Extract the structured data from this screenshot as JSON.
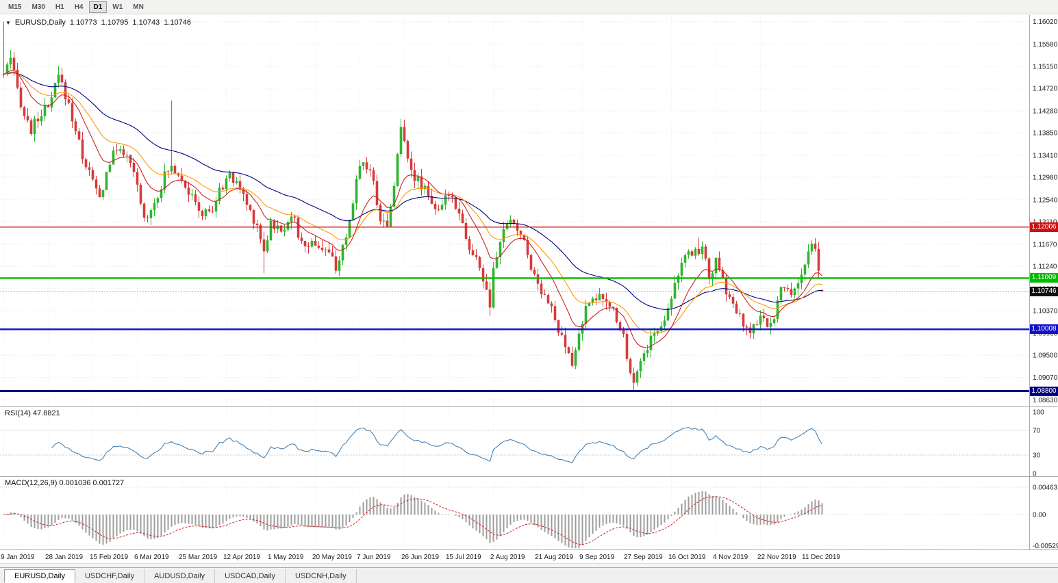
{
  "toolbar": {
    "timeframes": [
      "M15",
      "M30",
      "H1",
      "H4",
      "D1",
      "W1",
      "MN"
    ],
    "active": "D1"
  },
  "symbol_header": {
    "symbol": "EURUSD,Daily",
    "open": "1.10773",
    "high": "1.10795",
    "low": "1.10743",
    "close": "1.10746"
  },
  "price_chart": {
    "up_color": "#2FB52F",
    "down_color": "#D83A3A",
    "y_ticks": [
      "1.16020",
      "1.15580",
      "1.15150",
      "1.14720",
      "1.14280",
      "1.13850",
      "1.13410",
      "1.12980",
      "1.12540",
      "1.12110",
      "1.11670",
      "1.11240",
      "1.10800",
      "1.10370",
      "1.09930",
      "1.09500",
      "1.09070",
      "1.08630"
    ],
    "hlines": [
      {
        "name": "resistance-line",
        "price": 1.12006,
        "label": "1.12006",
        "color": "#CC1111",
        "width": 1.2
      },
      {
        "name": "support-line-green",
        "price": 1.11009,
        "label": "1.11009",
        "color": "#00BB00",
        "width": 2.4
      },
      {
        "name": "support-line-blue",
        "price": 1.10008,
        "label": "1.10008",
        "color": "#1111CC",
        "width": 2.4
      },
      {
        "name": "support-line-navy",
        "price": 1.088,
        "label": "1.08800",
        "color": "#000080",
        "width": 3
      }
    ],
    "current_price": {
      "value": 1.10746,
      "label": "1.10746",
      "flag_color": "#111111"
    },
    "candle_count": 240,
    "moving_averages": [
      {
        "period": 12,
        "color": "#CC2222",
        "name": "ma-fast-red"
      },
      {
        "period": 24,
        "color": "#FF9900",
        "name": "ma-mid-orange"
      },
      {
        "period": 50,
        "color": "#000080",
        "name": "ma-slow-blue"
      }
    ],
    "waypoints": [
      [
        0,
        1.15
      ],
      [
        2,
        1.1525
      ],
      [
        4,
        1.147
      ],
      [
        6,
        1.142
      ],
      [
        8,
        1.139
      ],
      [
        11,
        1.1425
      ],
      [
        13,
        1.143
      ],
      [
        16,
        1.1495
      ],
      [
        19,
        1.144
      ],
      [
        23,
        1.134
      ],
      [
        26,
        1.129
      ],
      [
        28,
        1.1255
      ],
      [
        31,
        1.133
      ],
      [
        34,
        1.136
      ],
      [
        37,
        1.132
      ],
      [
        39,
        1.128
      ],
      [
        41,
        1.1215
      ],
      [
        44,
        1.125
      ],
      [
        47,
        1.13
      ],
      [
        49,
        1.132
      ],
      [
        52,
        1.13
      ],
      [
        55,
        1.1255
      ],
      [
        58,
        1.1225
      ],
      [
        61,
        1.1235
      ],
      [
        65,
        1.13
      ],
      [
        68,
        1.129
      ],
      [
        71,
        1.1245
      ],
      [
        74,
        1.1205
      ],
      [
        76,
        1.1155
      ],
      [
        78,
        1.121
      ],
      [
        81,
        1.119
      ],
      [
        84,
        1.123
      ],
      [
        87,
        1.1165
      ],
      [
        91,
        1.117
      ],
      [
        94,
        1.1155
      ],
      [
        97,
        1.1125
      ],
      [
        100,
        1.117
      ],
      [
        104,
        1.133
      ],
      [
        107,
        1.1315
      ],
      [
        110,
        1.122
      ],
      [
        112,
        1.12
      ],
      [
        114,
        1.129
      ],
      [
        116,
        1.139
      ],
      [
        117,
        1.137
      ],
      [
        120,
        1.1295
      ],
      [
        123,
        1.128
      ],
      [
        127,
        1.1225
      ],
      [
        130,
        1.127
      ],
      [
        133,
        1.1235
      ],
      [
        136,
        1.1155
      ],
      [
        139,
        1.1125
      ],
      [
        142,
        1.1045
      ],
      [
        143,
        1.111
      ],
      [
        146,
        1.12
      ],
      [
        149,
        1.121
      ],
      [
        152,
        1.117
      ],
      [
        155,
        1.1105
      ],
      [
        156,
        1.109
      ],
      [
        159,
        1.106
      ],
      [
        162,
        1.0995
      ],
      [
        164,
        1.0965
      ],
      [
        166,
        1.093
      ],
      [
        169,
        1.102
      ],
      [
        172,
        1.107
      ],
      [
        175,
        1.1055
      ],
      [
        178,
        1.104
      ],
      [
        181,
        1.099
      ],
      [
        182,
        1.0945
      ],
      [
        184,
        1.0905
      ],
      [
        186,
        1.0935
      ],
      [
        189,
        1.0985
      ],
      [
        192,
        1.1005
      ],
      [
        195,
        1.107
      ],
      [
        198,
        1.113
      ],
      [
        201,
        1.115
      ],
      [
        204,
        1.116
      ],
      [
        206,
        1.1105
      ],
      [
        208,
        1.113
      ],
      [
        211,
        1.1075
      ],
      [
        214,
        1.1035
      ],
      [
        217,
        1.0995
      ],
      [
        220,
        1.101
      ],
      [
        221,
        1.102
      ],
      [
        224,
        1.1005
      ],
      [
        227,
        1.108
      ],
      [
        230,
        1.107
      ],
      [
        233,
        1.111
      ],
      [
        234,
        1.113
      ],
      [
        236,
        1.116
      ],
      [
        237,
        1.115
      ],
      [
        239,
        1.10746
      ]
    ],
    "spikes": [
      {
        "i": 0,
        "high": 1.1602
      },
      {
        "i": 16,
        "high": 1.1515
      },
      {
        "i": 49,
        "high": 1.1448
      },
      {
        "i": 76,
        "low": 1.111
      },
      {
        "i": 116,
        "high": 1.1412
      },
      {
        "i": 142,
        "low": 1.1027
      },
      {
        "i": 166,
        "low": 1.0926
      },
      {
        "i": 184,
        "low": 1.0879
      },
      {
        "i": 203,
        "high": 1.118
      },
      {
        "i": 217,
        "low": 1.0989
      },
      {
        "i": 236,
        "high": 1.1175
      }
    ],
    "last_candle": {
      "open": 1.10773,
      "high": 1.10795,
      "low": 1.10743,
      "close": 1.10746
    }
  },
  "rsi_panel": {
    "label": "RSI(14) 47.8821",
    "period": 14,
    "line_color": "#4682B4",
    "ticks": [
      {
        "value": 100,
        "label": "100"
      },
      {
        "value": 70,
        "label": "70"
      },
      {
        "value": 30,
        "label": "30"
      },
      {
        "value": 0,
        "label": "0"
      }
    ],
    "dotted_levels": [
      70,
      30
    ]
  },
  "macd_panel": {
    "label": "MACD(12,26,9) 0.001036 0.001727",
    "fast": 12,
    "slow": 26,
    "signal": 9,
    "hist_color": "#9C9C9C",
    "signal_color": "#CC2222",
    "ticks": [
      {
        "value": 0.00463,
        "label": "0.00463"
      },
      {
        "value": 0,
        "label": "0.00"
      },
      {
        "value": -0.00529,
        "label": "-0.00529"
      }
    ]
  },
  "date_axis": {
    "labels": [
      "9 Jan 2019",
      "28 Jan 2019",
      "15 Feb 2019",
      "6 Mar 2019",
      "25 Mar 2019",
      "12 Apr 2019",
      "1 May 2019",
      "20 May 2019",
      "7 Jun 2019",
      "26 Jun 2019",
      "15 Jul 2019",
      "2 Aug 2019",
      "21 Aug 2019",
      "9 Sep 2019",
      "27 Sep 2019",
      "16 Oct 2019",
      "4 Nov 2019",
      "22 Nov 2019",
      "11 Dec 2019"
    ],
    "indices": [
      0,
      13,
      26,
      39,
      52,
      65,
      78,
      91,
      104,
      117,
      130,
      143,
      156,
      169,
      182,
      195,
      208,
      221,
      234
    ]
  },
  "tabs": [
    {
      "label": "EURUSD,Daily",
      "active": true
    },
    {
      "label": "USDCHF,Daily",
      "active": false
    },
    {
      "label": "AUDUSD,Daily",
      "active": false
    },
    {
      "label": "USDCAD,Daily",
      "active": false
    },
    {
      "label": "USDCNH,Daily",
      "active": false
    }
  ]
}
